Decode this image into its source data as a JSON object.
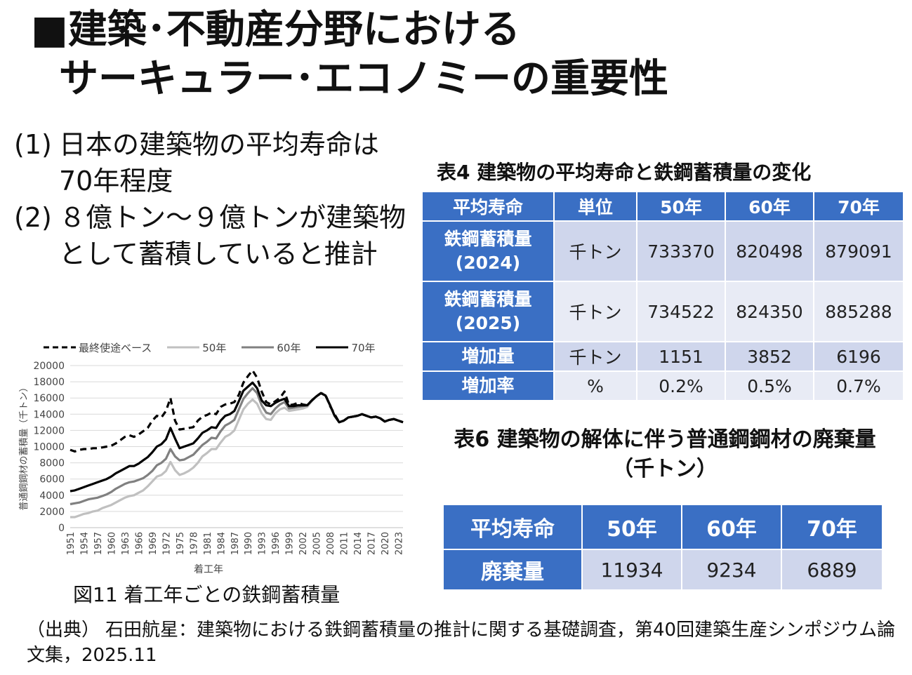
{
  "title": {
    "line1": "■建築･不動産分野における",
    "line2": "サーキュラー･エコノミーの重要性"
  },
  "points": [
    {
      "num": "(1)",
      "text": "日本の建築物の平均寿命は70年程度"
    },
    {
      "num": "(2)",
      "text": "８億トン～９億トンが建築物として蓄積していると推計"
    }
  ],
  "figure": {
    "caption": "図11 着工年ごとの鉄鋼蓄積量"
  },
  "chart_data": {
    "type": "line",
    "title": "",
    "xlabel": "着工年",
    "ylabel": "普通鋼鋼材の蓄積量（千トン）",
    "ylim": [
      0,
      20000
    ],
    "yticks": [
      0,
      2000,
      4000,
      6000,
      8000,
      10000,
      12000,
      14000,
      16000,
      18000,
      20000
    ],
    "xticks": [
      "1951",
      "1954",
      "1957",
      "1960",
      "1963",
      "1966",
      "1969",
      "1972",
      "1975",
      "1978",
      "1981",
      "1984",
      "1987",
      "1990",
      "1993",
      "1996",
      "1999",
      "2002",
      "2005",
      "2008",
      "2011",
      "2014",
      "2017",
      "2020",
      "2023"
    ],
    "grid": true,
    "legend_position": "top",
    "x": [
      1951,
      1952,
      1953,
      1954,
      1955,
      1956,
      1957,
      1958,
      1959,
      1960,
      1961,
      1962,
      1963,
      1964,
      1965,
      1966,
      1967,
      1968,
      1969,
      1970,
      1971,
      1972,
      1973,
      1974,
      1975,
      1976,
      1977,
      1978,
      1979,
      1980,
      1981,
      1982,
      1983,
      1984,
      1985,
      1986,
      1987,
      1988,
      1989,
      1990,
      1991,
      1992,
      1993,
      1994,
      1995,
      1996,
      1997,
      1998,
      1999,
      2000,
      2001,
      2002,
      2003,
      2004,
      2005,
      2006,
      2007,
      2008,
      2009,
      2010,
      2011,
      2012,
      2013,
      2014,
      2015,
      2016,
      2017,
      2018,
      2019,
      2020,
      2021,
      2022,
      2023,
      2024
    ],
    "series": [
      {
        "name": "最終使途ベース",
        "style": "dash",
        "color": "#000000",
        "values": [
          9600,
          9400,
          9600,
          9700,
          9700,
          9800,
          9800,
          9900,
          10000,
          10100,
          10400,
          10800,
          11200,
          11400,
          11200,
          11500,
          11900,
          12300,
          13200,
          13800,
          13600,
          14400,
          16000,
          13200,
          12100,
          12200,
          12300,
          12400,
          13200,
          13700,
          13900,
          14200,
          14000,
          14900,
          15200,
          15300,
          15500,
          16400,
          17900,
          18700,
          19400,
          18500,
          16800,
          15500,
          15200,
          15600,
          16000,
          16800,
          15100,
          15200,
          15400,
          15200,
          15100,
          15700,
          16200,
          16600,
          16400,
          15000,
          14000,
          13000,
          13200,
          13600,
          13700,
          13800,
          14000,
          13800,
          13600,
          13700,
          13500,
          13100,
          13300,
          13400,
          13200,
          13000
        ]
      },
      {
        "name": "50年",
        "style": "solid",
        "color": "#c0c0c0",
        "values": [
          1300,
          1300,
          1500,
          1700,
          1800,
          2000,
          2100,
          2400,
          2600,
          2800,
          3100,
          3400,
          3700,
          3900,
          4000,
          4300,
          4600,
          5100,
          5700,
          6300,
          6500,
          7000,
          8100,
          7100,
          6500,
          6700,
          7000,
          7400,
          8000,
          8800,
          9200,
          9700,
          9700,
          10500,
          11200,
          11500,
          12000,
          13300,
          14600,
          15300,
          15800,
          15300,
          14100,
          13400,
          13300,
          14100,
          14600,
          14800,
          14400,
          14500,
          14600,
          14700,
          14900,
          15600,
          16200,
          16600,
          16300,
          15200,
          13800,
          13000,
          13200,
          13600,
          13700,
          13800,
          14000,
          13800,
          13600,
          13700,
          13500,
          13100,
          13300,
          13400,
          13200,
          13000
        ]
      },
      {
        "name": "60年",
        "style": "solid",
        "color": "#808080",
        "values": [
          2900,
          3000,
          3100,
          3300,
          3500,
          3600,
          3700,
          3900,
          4100,
          4400,
          4800,
          5100,
          5400,
          5600,
          5700,
          5900,
          6100,
          6500,
          7000,
          7700,
          8000,
          8500,
          9700,
          8800,
          8300,
          8400,
          8700,
          9000,
          9600,
          10200,
          10600,
          11100,
          11000,
          11900,
          12600,
          12900,
          13300,
          14600,
          15900,
          16600,
          17200,
          16600,
          15100,
          14200,
          14000,
          14700,
          15200,
          15500,
          14700,
          14800,
          14900,
          15000,
          15100,
          15700,
          16200,
          16600,
          16300,
          15100,
          13800,
          13000,
          13200,
          13600,
          13700,
          13800,
          14000,
          13800,
          13600,
          13700,
          13500,
          13100,
          13300,
          13400,
          13200,
          13000
        ]
      },
      {
        "name": "70年",
        "style": "solid",
        "color": "#000000",
        "values": [
          4500,
          4600,
          4800,
          5000,
          5200,
          5400,
          5600,
          5800,
          6000,
          6300,
          6700,
          7000,
          7300,
          7600,
          7600,
          7900,
          8300,
          8700,
          9300,
          10000,
          10300,
          10900,
          12300,
          11000,
          9800,
          10000,
          10200,
          10400,
          11000,
          11700,
          12000,
          12400,
          12300,
          13200,
          13800,
          14000,
          14400,
          15600,
          16900,
          17400,
          17900,
          17200,
          15700,
          15100,
          15000,
          15400,
          15700,
          15900,
          15000,
          15000,
          15100,
          15100,
          15100,
          15700,
          16200,
          16600,
          16300,
          15100,
          13800,
          13000,
          13200,
          13600,
          13700,
          13800,
          14000,
          13800,
          13600,
          13700,
          13500,
          13100,
          13300,
          13400,
          13200,
          13000
        ]
      }
    ]
  },
  "table4": {
    "caption": "表4 建築物の平均寿命と鉄鋼蓄積量の変化",
    "headers": [
      "平均寿命",
      "単位",
      "50年",
      "60年",
      "70年"
    ],
    "rows": [
      {
        "label1": "鉄鋼蓄積量",
        "label2": "(2024)",
        "unit": "千トン",
        "v50": "733370",
        "v60": "820498",
        "v70": "879091"
      },
      {
        "label1": "鉄鋼蓄積量",
        "label2": "(2025)",
        "unit": "千トン",
        "v50": "734522",
        "v60": "824350",
        "v70": "885288"
      },
      {
        "label1": "増加量",
        "label2": "",
        "unit": "千トン",
        "v50": "1151",
        "v60": "3852",
        "v70": "6196"
      },
      {
        "label1": "増加率",
        "label2": "",
        "unit": "%",
        "v50": "0.2%",
        "v60": "0.5%",
        "v70": "0.7%"
      }
    ]
  },
  "table6": {
    "caption_line1": "表6 建築物の解体に伴う普通鋼鋼材の廃棄量",
    "caption_line2": "（千トン）",
    "headers": [
      "平均寿命",
      "50年",
      "60年",
      "70年"
    ],
    "row": {
      "label": "廃棄量",
      "v50": "11934",
      "v60": "9234",
      "v70": "6889"
    }
  },
  "source": {
    "label": "（出典）",
    "text": "石田航星：建築物における鉄鋼蓄積量の推計に関する基礎調査，第40回建築生産シンポジウム論文集，2025.11"
  }
}
